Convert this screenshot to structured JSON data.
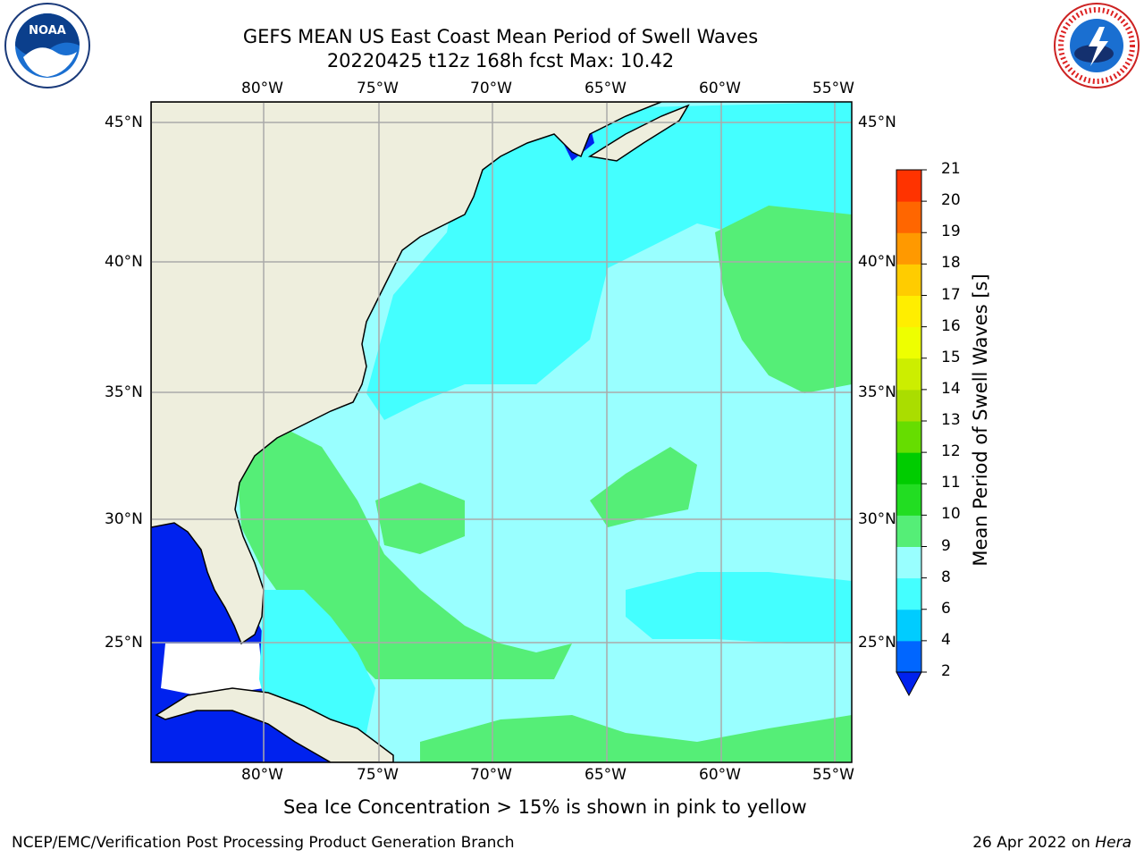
{
  "header": {
    "title_line1": "GEFS MEAN US East Coast Mean Period of Swell Waves",
    "title_line2": "20220425 t12z 168h fcst   Max: 10.42"
  },
  "logos": {
    "left": "NOAA",
    "right": "NATIONAL WEATHER SERVICE"
  },
  "map": {
    "lon_labels": [
      "80°W",
      "75°W",
      "70°W",
      "65°W",
      "60°W",
      "55°W"
    ],
    "lat_labels": [
      "45°N",
      "40°N",
      "35°N",
      "30°N",
      "25°N"
    ],
    "colors": {
      "land": "#eeeedd",
      "ocean_cyan": "#44ffff",
      "ocean_pale": "#99ffff",
      "ocean_green": "#55ee77",
      "deep_blue": "#0022ee",
      "grid": "#aaaaaa"
    }
  },
  "colorbar": {
    "label": "Mean Period of Swell Waves [s]",
    "ticks": [
      "2",
      "4",
      "6",
      "8",
      "9",
      "10",
      "11",
      "12",
      "13",
      "14",
      "15",
      "16",
      "17",
      "18",
      "19",
      "20",
      "21"
    ],
    "colors": [
      "#0066ff",
      "#00ccff",
      "#44ffff",
      "#99ffff",
      "#55ee77",
      "#22dd22",
      "#00cc00",
      "#66dd00",
      "#aadd00",
      "#ccee00",
      "#eeff00",
      "#ffee00",
      "#ffcc00",
      "#ff9900",
      "#ff6600",
      "#ff3300",
      "#ff0000"
    ],
    "under_color": "#0022ee"
  },
  "caption": "Sea Ice Concentration > 15% is shown in pink to yellow",
  "footer": {
    "left": "NCEP/EMC/Verification Post Processing Product Generation Branch",
    "right_date": "26 Apr 2022 on ",
    "right_host": "Hera"
  }
}
